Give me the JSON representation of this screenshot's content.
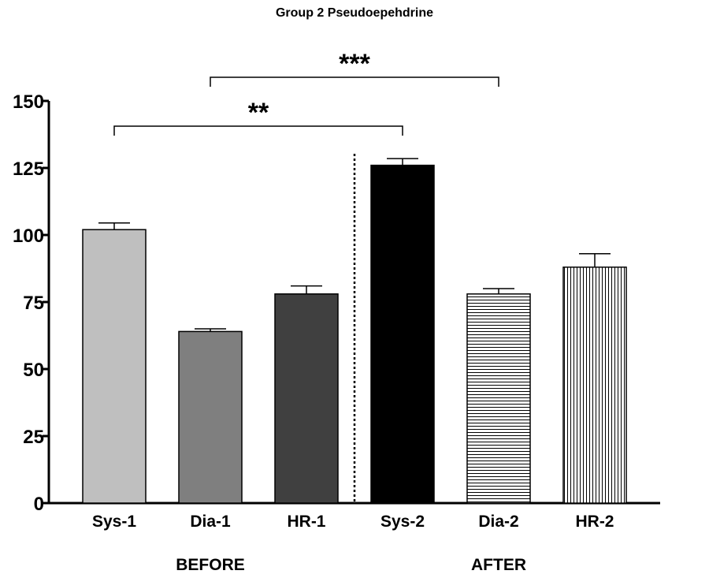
{
  "chart_data": {
    "type": "bar",
    "title": "Group 2 Pseudoepehdrine",
    "xlabel": "",
    "ylabel": "",
    "ylim": [
      0,
      150
    ],
    "yticks": [
      0,
      25,
      50,
      75,
      100,
      125,
      150
    ],
    "categories": [
      "Sys-1",
      "Dia-1",
      "HR-1",
      "Sys-2",
      "Dia-2",
      "HR-2"
    ],
    "values": [
      102,
      64,
      78,
      126,
      78,
      88
    ],
    "errors": [
      2.5,
      1,
      3,
      2.5,
      2,
      5
    ],
    "fills": [
      "#bfbfbf",
      "#7f7f7f",
      "#404040",
      "#000000",
      "horizontal-stripes",
      "vertical-stripes"
    ],
    "groups": [
      {
        "label": "BEFORE",
        "categories": [
          "Sys-1",
          "Dia-1",
          "HR-1"
        ]
      },
      {
        "label": "AFTER",
        "categories": [
          "Sys-2",
          "Dia-2",
          "HR-2"
        ]
      }
    ],
    "divider": {
      "between": [
        "HR-1",
        "Sys-2"
      ],
      "style": "dotted"
    },
    "significance": [
      {
        "from": "Sys-1",
        "to": "Sys-2",
        "label": "**"
      },
      {
        "from": "Dia-1",
        "to": "Dia-2",
        "label": "***"
      }
    ],
    "grid": false,
    "legend": "none"
  }
}
